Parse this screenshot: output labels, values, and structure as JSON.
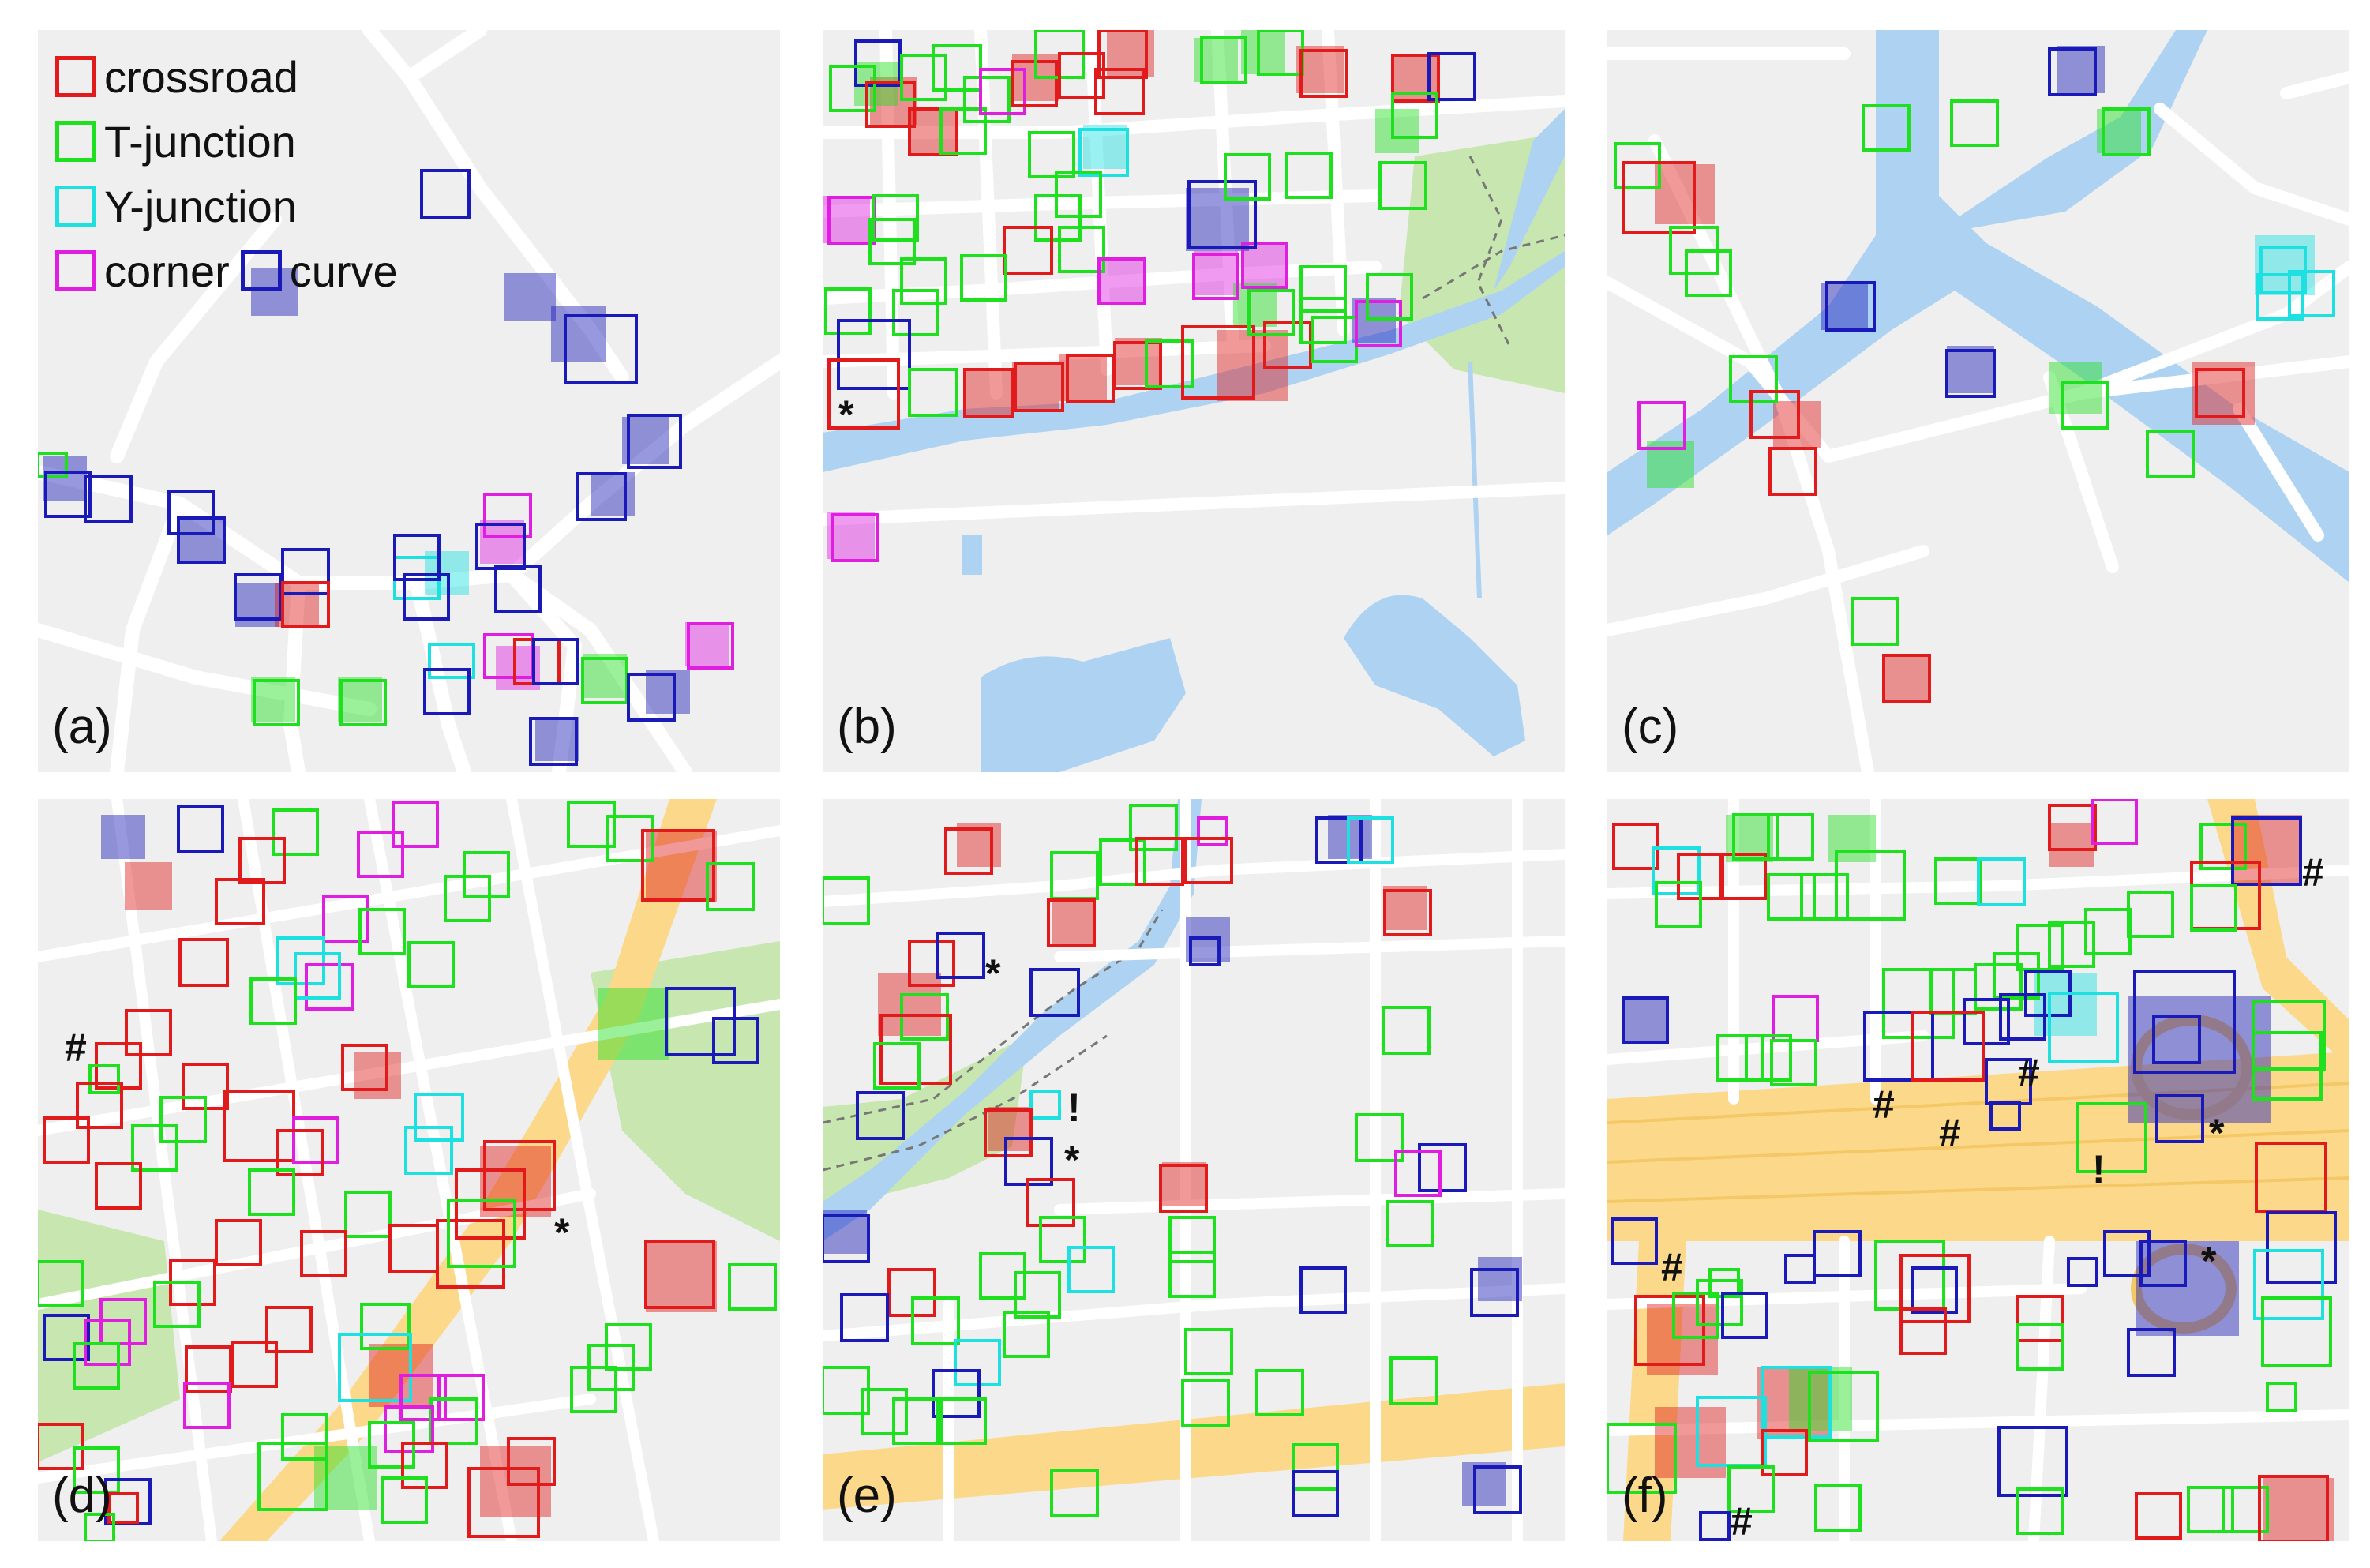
{
  "legend": {
    "items": [
      {
        "label": "crossroad",
        "color": "#e11b1b"
      },
      {
        "label": "T-junction",
        "color": "#1ee01e"
      },
      {
        "label": "Y-junction",
        "color": "#1ee0e0"
      },
      {
        "label": "corner",
        "color": "#e01ee0"
      },
      {
        "label": "curve",
        "color": "#1a1ab8"
      }
    ]
  },
  "panels": [
    {
      "id": "a",
      "label": "(a)"
    },
    {
      "id": "b",
      "label": "(b)"
    },
    {
      "id": "c",
      "label": "(c)"
    },
    {
      "id": "d",
      "label": "(d)"
    },
    {
      "id": "e",
      "label": "(e)"
    },
    {
      "id": "f",
      "label": "(f)"
    }
  ],
  "markers": {
    "star": "*",
    "hash": "#",
    "excl": "!"
  },
  "colors": {
    "map_bg": "#efefef",
    "road": "#ffffff",
    "water": "#aed3f2",
    "park": "#c8e6b0",
    "highway": "#fcd98a"
  }
}
